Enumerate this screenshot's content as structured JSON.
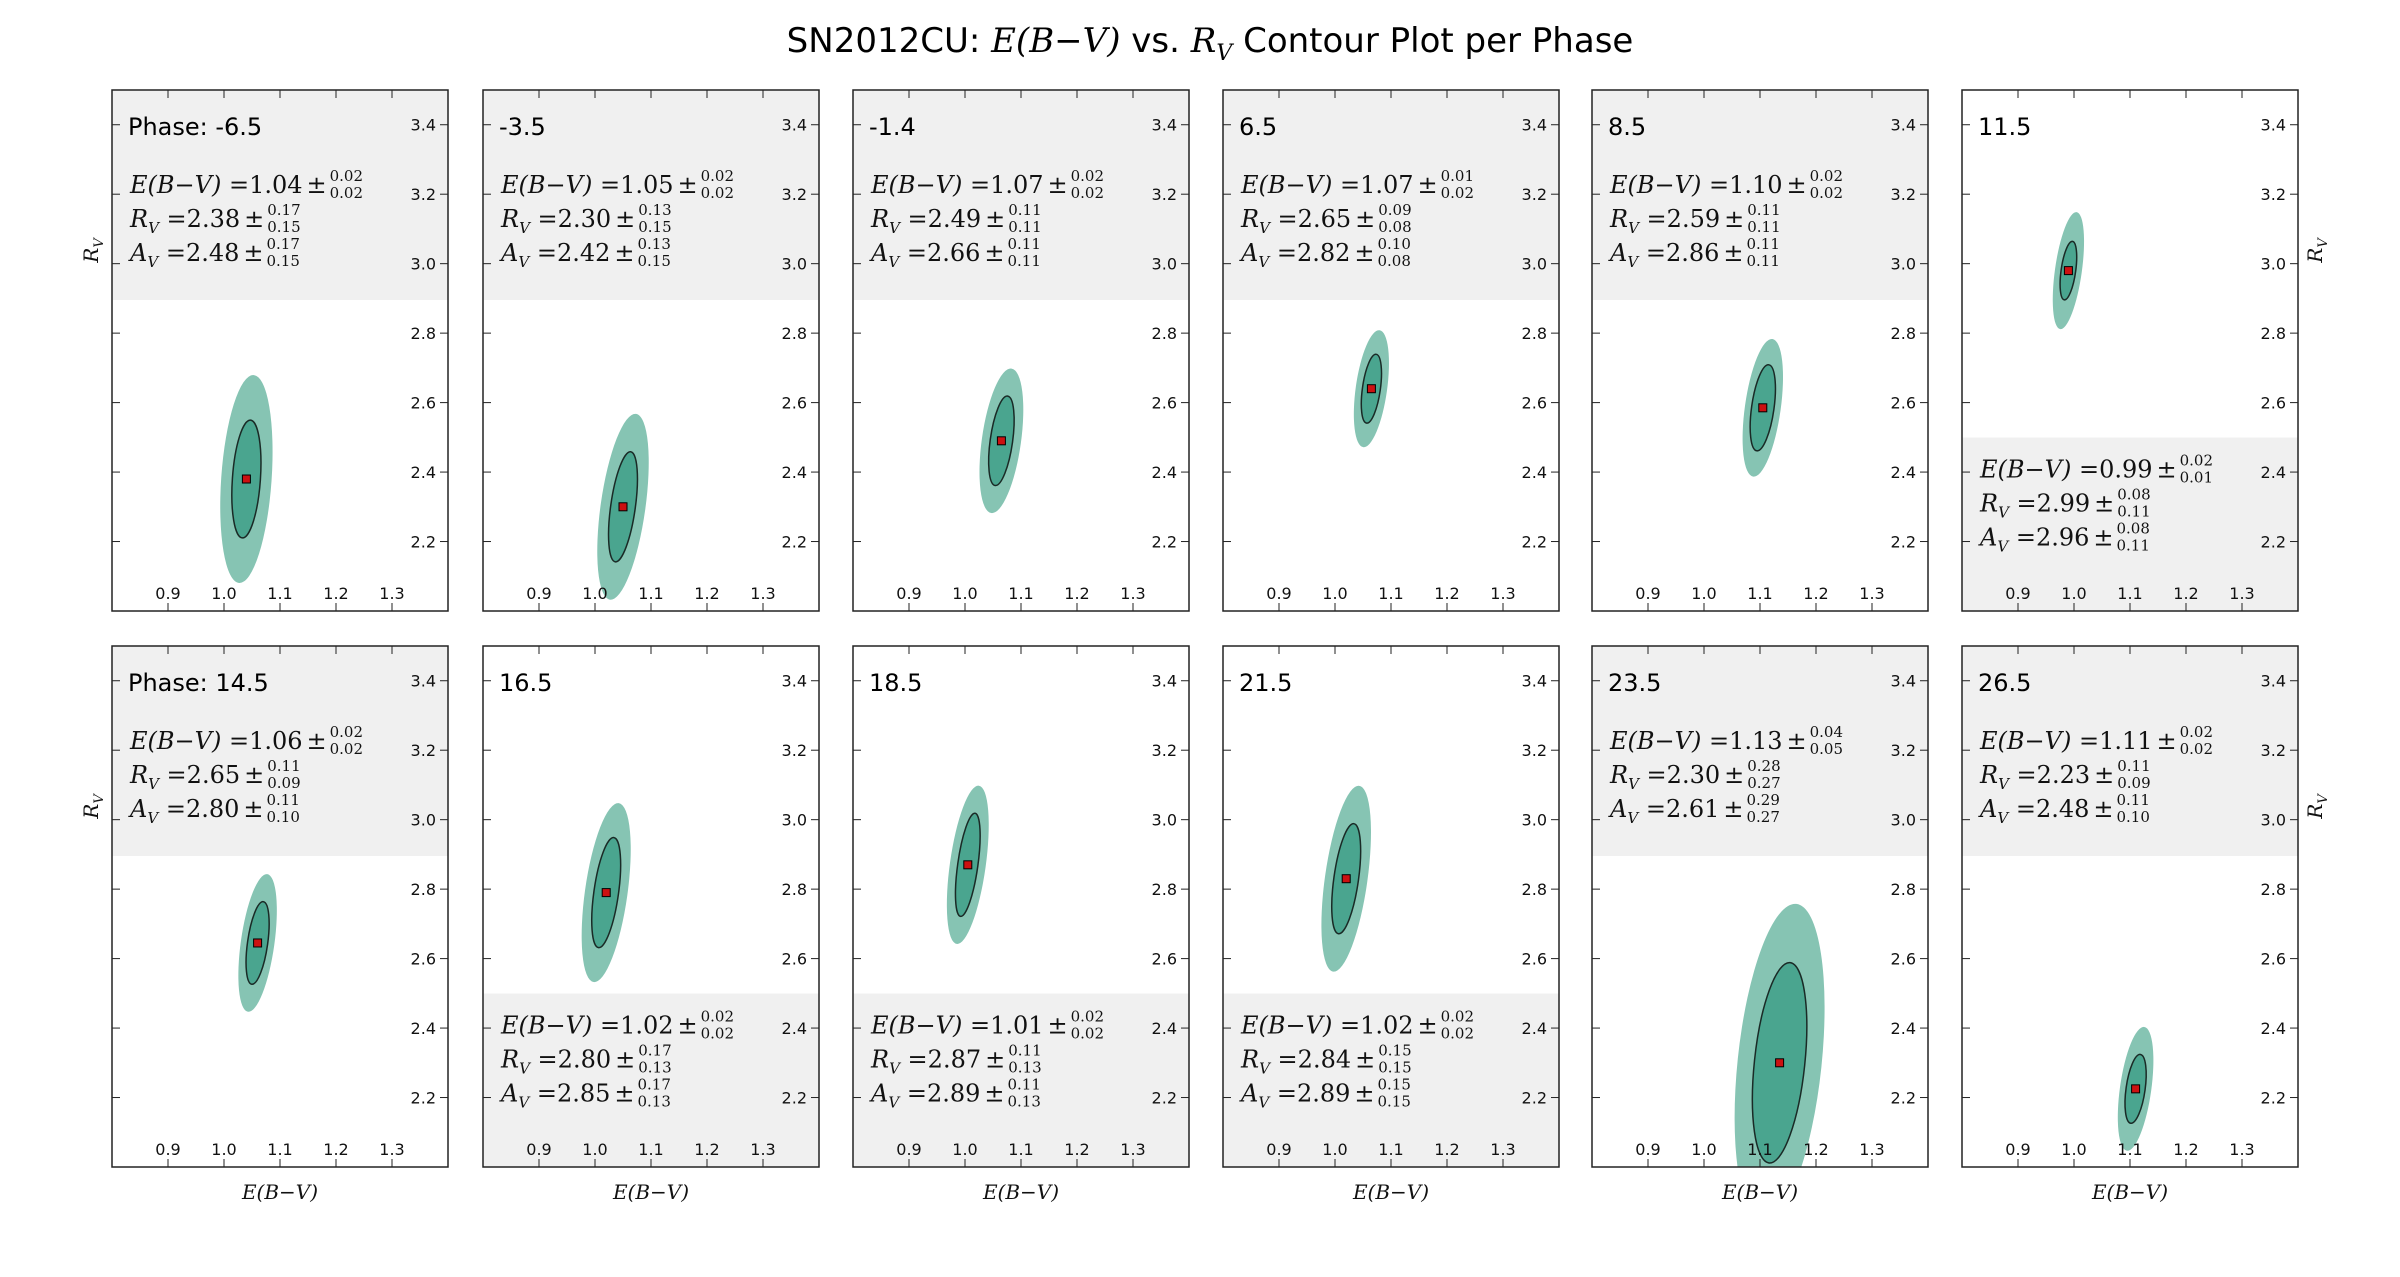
{
  "title": {
    "prefix": "SN2012CU: ",
    "xsym": "E(B−V)",
    "mid": " vs. ",
    "ysym": "R",
    "ysub": "V",
    "suffix": " Contour Plot per Phase"
  },
  "colors": {
    "outer_contour": "#86c4b3",
    "inner_contour": "#4aa58f",
    "best_fit_marker": "#cc1111",
    "legend_box": "#f0f0f0",
    "frame": "#222222"
  },
  "axes_labels": {
    "xlabel": "E(B−V)",
    "ylabel_main": "R",
    "ylabel_sub": "V"
  },
  "stat_labels": {
    "ebv": "E(B−V)",
    "rv_main": "R",
    "rv_sub": "V",
    "av_main": "A",
    "av_sub": "V",
    "eq": " =",
    "pm": "±"
  },
  "chart_data": {
    "type": "contour",
    "xlim": [
      0.8,
      1.4
    ],
    "ylim": [
      2.0,
      3.5
    ],
    "xticks": [
      "0.9",
      "1.0",
      "1.1",
      "1.2",
      "1.3"
    ],
    "yticks": [
      "2.2",
      "2.4",
      "2.6",
      "2.8",
      "3.0",
      "3.2",
      "3.4"
    ],
    "panels": [
      {
        "phase": "Phase: -6.5",
        "ebv": "1.04",
        "ebv_up": "0.02",
        "ebv_dn": "0.02",
        "rv": "2.38",
        "rv_up": "0.17",
        "rv_dn": "0.15",
        "av": "2.48",
        "av_up": "0.17",
        "av_dn": "0.15",
        "legend": "top",
        "center": [
          1.04,
          2.38
        ],
        "inner": [
          0.025,
          0.17
        ],
        "outer": [
          0.045,
          0.3
        ],
        "angle": 4
      },
      {
        "phase": "-3.5",
        "ebv": "1.05",
        "ebv_up": "0.02",
        "ebv_dn": "0.02",
        "rv": "2.30",
        "rv_up": "0.13",
        "rv_dn": "0.15",
        "av": "2.42",
        "av_up": "0.13",
        "av_dn": "0.15",
        "legend": "top",
        "center": [
          1.05,
          2.3
        ],
        "inner": [
          0.022,
          0.16
        ],
        "outer": [
          0.04,
          0.27
        ],
        "angle": 8
      },
      {
        "phase": "-1.4",
        "ebv": "1.07",
        "ebv_up": "0.02",
        "ebv_dn": "0.02",
        "rv": "2.49",
        "rv_up": "0.11",
        "rv_dn": "0.11",
        "av": "2.66",
        "av_up": "0.11",
        "av_dn": "0.11",
        "legend": "top",
        "center": [
          1.065,
          2.49
        ],
        "inner": [
          0.02,
          0.13
        ],
        "outer": [
          0.035,
          0.21
        ],
        "angle": 8
      },
      {
        "phase": "6.5",
        "ebv": "1.07",
        "ebv_up": "0.01",
        "ebv_dn": "0.02",
        "rv": "2.65",
        "rv_up": "0.09",
        "rv_dn": "0.08",
        "av": "2.82",
        "av_up": "0.10",
        "av_dn": "0.08",
        "legend": "top",
        "center": [
          1.065,
          2.64
        ],
        "inner": [
          0.016,
          0.1
        ],
        "outer": [
          0.028,
          0.17
        ],
        "angle": 8
      },
      {
        "phase": "8.5",
        "ebv": "1.10",
        "ebv_up": "0.02",
        "ebv_dn": "0.02",
        "rv": "2.59",
        "rv_up": "0.11",
        "rv_dn": "0.11",
        "av": "2.86",
        "av_up": "0.11",
        "av_dn": "0.11",
        "legend": "top",
        "center": [
          1.105,
          2.585
        ],
        "inner": [
          0.02,
          0.125
        ],
        "outer": [
          0.032,
          0.2
        ],
        "angle": 8
      },
      {
        "phase": "11.5",
        "ebv": "0.99",
        "ebv_up": "0.02",
        "ebv_dn": "0.01",
        "rv": "2.99",
        "rv_up": "0.08",
        "rv_dn": "0.11",
        "av": "2.96",
        "av_up": "0.08",
        "av_dn": "0.11",
        "legend": "bottom",
        "center": [
          0.99,
          2.98
        ],
        "inner": [
          0.013,
          0.085
        ],
        "outer": [
          0.024,
          0.17
        ],
        "angle": 8
      },
      {
        "phase": "Phase: 14.5",
        "ebv": "1.06",
        "ebv_up": "0.02",
        "ebv_dn": "0.02",
        "rv": "2.65",
        "rv_up": "0.11",
        "rv_dn": "0.09",
        "av": "2.80",
        "av_up": "0.11",
        "av_dn": "0.10",
        "legend": "top",
        "center": [
          1.06,
          2.645
        ],
        "inner": [
          0.018,
          0.12
        ],
        "outer": [
          0.03,
          0.2
        ],
        "angle": 8
      },
      {
        "phase": "16.5",
        "ebv": "1.02",
        "ebv_up": "0.02",
        "ebv_dn": "0.02",
        "rv": "2.80",
        "rv_up": "0.17",
        "rv_dn": "0.13",
        "av": "2.85",
        "av_up": "0.17",
        "av_dn": "0.13",
        "legend": "bottom",
        "center": [
          1.02,
          2.79
        ],
        "inner": [
          0.022,
          0.16
        ],
        "outer": [
          0.038,
          0.26
        ],
        "angle": 8
      },
      {
        "phase": "18.5",
        "ebv": "1.01",
        "ebv_up": "0.02",
        "ebv_dn": "0.02",
        "rv": "2.87",
        "rv_up": "0.11",
        "rv_dn": "0.13",
        "av": "2.89",
        "av_up": "0.11",
        "av_dn": "0.13",
        "legend": "bottom",
        "center": [
          1.005,
          2.87
        ],
        "inner": [
          0.018,
          0.15
        ],
        "outer": [
          0.032,
          0.23
        ],
        "angle": 8
      },
      {
        "phase": "21.5",
        "ebv": "1.02",
        "ebv_up": "0.02",
        "ebv_dn": "0.02",
        "rv": "2.84",
        "rv_up": "0.15",
        "rv_dn": "0.15",
        "av": "2.89",
        "av_up": "0.15",
        "av_dn": "0.15",
        "legend": "bottom",
        "center": [
          1.02,
          2.83
        ],
        "inner": [
          0.022,
          0.16
        ],
        "outer": [
          0.038,
          0.27
        ],
        "angle": 8
      },
      {
        "phase": "23.5",
        "ebv": "1.13",
        "ebv_up": "0.04",
        "ebv_dn": "0.05",
        "rv": "2.30",
        "rv_up": "0.28",
        "rv_dn": "0.27",
        "av": "2.61",
        "av_up": "0.29",
        "av_dn": "0.27",
        "legend": "top",
        "center": [
          1.135,
          2.3
        ],
        "inner": [
          0.045,
          0.29
        ],
        "outer": [
          0.075,
          0.46
        ],
        "angle": 6
      },
      {
        "phase": "26.5",
        "ebv": "1.11",
        "ebv_up": "0.02",
        "ebv_dn": "0.02",
        "rv": "2.23",
        "rv_up": "0.11",
        "rv_dn": "0.09",
        "av": "2.48",
        "av_up": "0.11",
        "av_dn": "0.10",
        "legend": "top",
        "center": [
          1.11,
          2.225
        ],
        "inner": [
          0.017,
          0.1
        ],
        "outer": [
          0.028,
          0.18
        ],
        "angle": 8
      }
    ]
  }
}
